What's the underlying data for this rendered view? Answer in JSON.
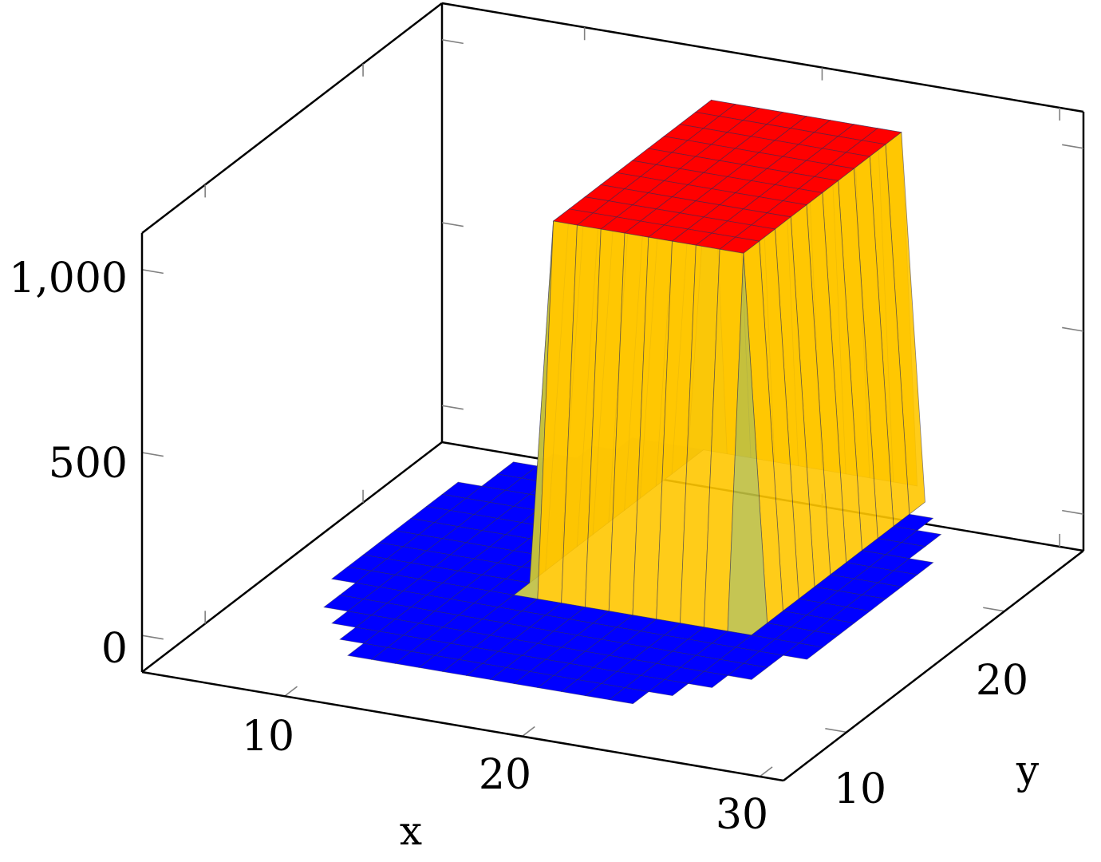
{
  "chart_data": {
    "type": "surface3d",
    "title": "",
    "xlabel": "x",
    "ylabel": "y",
    "zlabel": "",
    "xlim": [
      4,
      31
    ],
    "ylim": [
      6,
      25
    ],
    "zlim": [
      -100,
      1100
    ],
    "xticks": [
      10,
      20,
      30
    ],
    "xtick_labels": [
      "10",
      "20",
      "30"
    ],
    "yticks": [
      10,
      20
    ],
    "ytick_labels": [
      "10",
      "20"
    ],
    "zticks": [
      0,
      500,
      1000
    ],
    "ztick_labels": [
      "0",
      "500",
      "1,000"
    ],
    "grid": false,
    "colormap": [
      "#0000ff",
      "#ffff00",
      "#ff8c00",
      "#ff0000"
    ],
    "surface_shape": "disc of points (radius about 11 around x=18, y=16) with a flat-topped plateau (about 1,000) over x 16 to 24, y 14 to 24, and value near 0 elsewhere",
    "grid_x_range": [
      6,
      30
    ],
    "grid_y_range": [
      7,
      25
    ],
    "plateau_height": 1000,
    "base_height": 0
  }
}
